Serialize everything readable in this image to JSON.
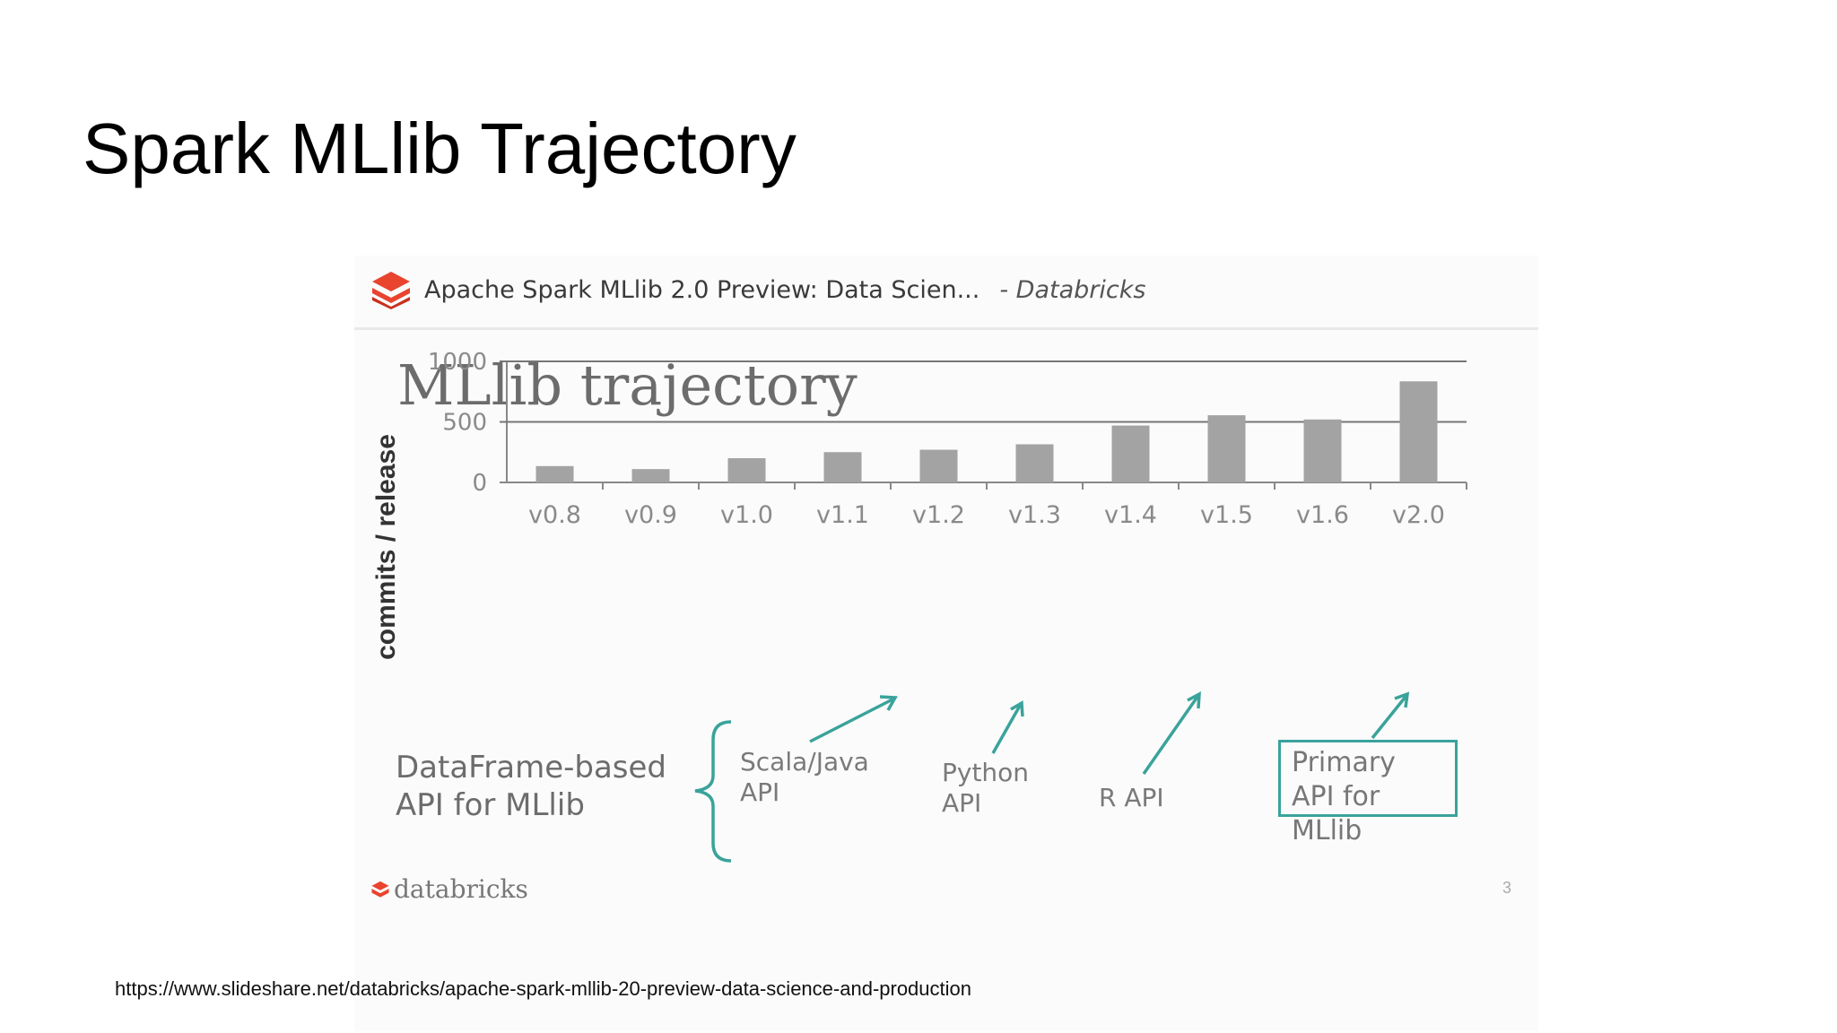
{
  "slide": {
    "title": "Spark MLlib Trajectory",
    "url": "https://www.slideshare.net/databricks/apache-spark-mllib-20-preview-data-science-and-production"
  },
  "embed": {
    "header_title": "Apache Spark MLlib 2.0 Preview: Data Scien...",
    "header_source": "- Databricks",
    "inner_title": "MLlib trajectory",
    "footer_logo_text": "databricks",
    "page_number": "3",
    "brace_label": "DataFrame-based API for MLlib",
    "notes": {
      "scala": "Scala/Java API",
      "python": "Python API",
      "r": "R API",
      "primary": "Primary API for MLlib"
    },
    "colors": {
      "brand": "#e8442e",
      "accent": "#3aa39b",
      "bar": "#a3a3a3"
    }
  },
  "chart_data": {
    "type": "bar",
    "categories": [
      "v0.8",
      "v0.9",
      "v1.0",
      "v1.1",
      "v1.2",
      "v1.3",
      "v1.4",
      "v1.5",
      "v1.6",
      "v2.0"
    ],
    "values": [
      135,
      110,
      200,
      250,
      270,
      315,
      470,
      555,
      520,
      835
    ],
    "ylabel": "commits / release",
    "ylim": [
      0,
      1000
    ],
    "yticks": [
      0,
      500,
      1000
    ],
    "grid": true
  }
}
